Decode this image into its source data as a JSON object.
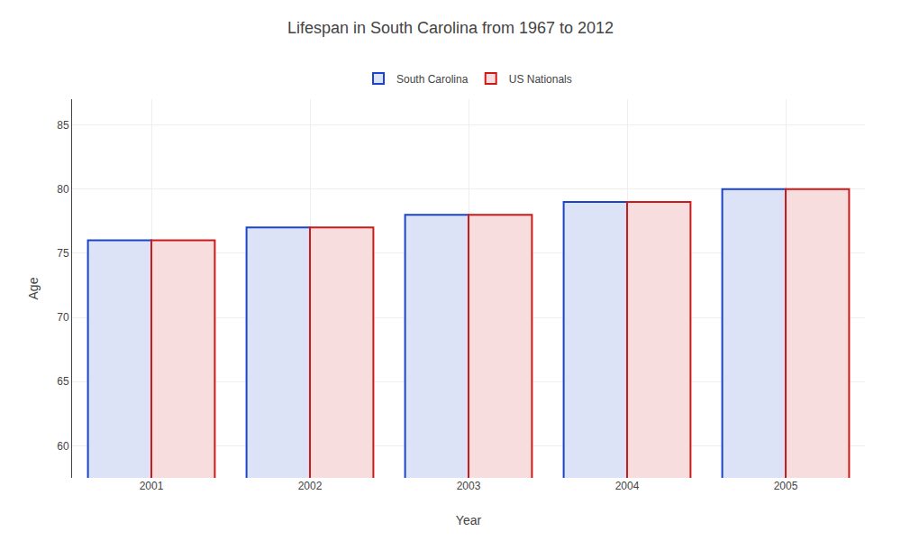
{
  "chart_data": {
    "type": "bar",
    "title": "Lifespan in South Carolina from 1967 to 2012",
    "x_label": "Year",
    "y_label": "Age",
    "categories": [
      "2001",
      "2002",
      "2003",
      "2004",
      "2005"
    ],
    "series": [
      {
        "name": "South Carolina",
        "color": "#1a44cc",
        "values": [
          76,
          77,
          78,
          79,
          80
        ]
      },
      {
        "name": "US Nationals",
        "color": "#cc1a1a",
        "values": [
          76,
          77,
          78,
          79,
          80
        ]
      }
    ],
    "ylim": [
      57.5,
      87
    ],
    "yticks": [
      60,
      65,
      70,
      75,
      80,
      85
    ],
    "grid": true,
    "legend": "top"
  }
}
